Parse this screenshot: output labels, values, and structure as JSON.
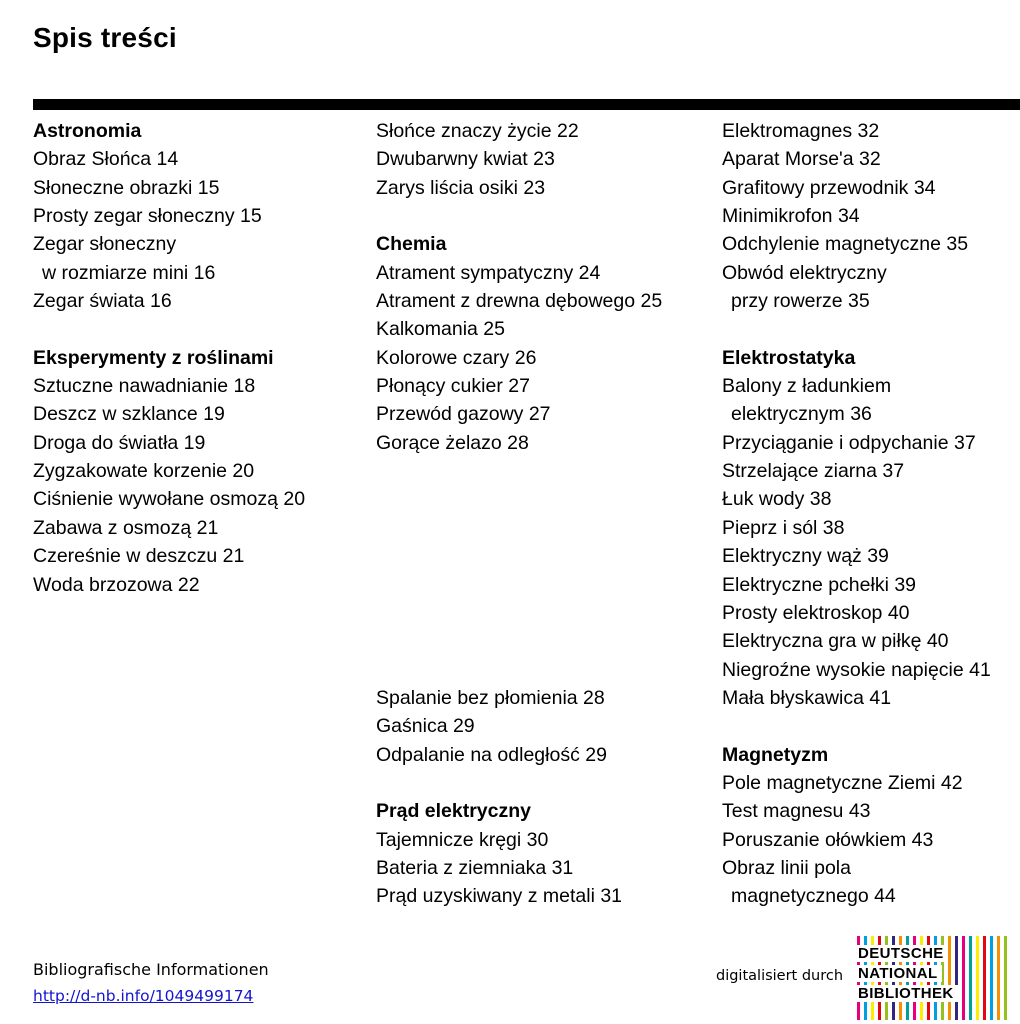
{
  "page": {
    "title": "Spis treści"
  },
  "toc": {
    "columns": [
      {
        "lines": [
          {
            "text": "Astronomia",
            "bold": true
          },
          {
            "text": "Obraz Słońca 14"
          },
          {
            "text": "Słoneczne obrazki 15"
          },
          {
            "text": "Prosty zegar słoneczny 15"
          },
          {
            "text": "Zegar słoneczny"
          },
          {
            "text": "w rozmiarze mini 16",
            "indent": true
          },
          {
            "text": "Zegar świata 16"
          },
          {
            "text": ""
          },
          {
            "text": "Eksperymenty z roślinami",
            "bold": true
          },
          {
            "text": "Sztuczne nawadnianie 18"
          },
          {
            "text": "Deszcz w szklance 19"
          },
          {
            "text": "Droga do światła 19"
          },
          {
            "text": "Zygzakowate korzenie 20"
          },
          {
            "text": "Ciśnienie wywołane osmozą 20"
          },
          {
            "text": "Zabawa z osmozą 21"
          },
          {
            "text": "Czereśnie w deszczu 21"
          },
          {
            "text": "Woda brzozowa 22"
          }
        ]
      },
      {
        "lines": [
          {
            "text": "Słońce znaczy życie 22"
          },
          {
            "text": "Dwubarwny kwiat 23"
          },
          {
            "text": "Zarys liścia osiki 23"
          },
          {
            "text": ""
          },
          {
            "text": "Chemia",
            "bold": true
          },
          {
            "text": "Atrament sympatyczny 24"
          },
          {
            "text": "Atrament z drewna dębowego 25"
          },
          {
            "text": "Kalkomania 25"
          },
          {
            "text": "Kolorowe czary 26"
          },
          {
            "text": "Płonący cukier 27"
          },
          {
            "text": "Przewód gazowy 27"
          },
          {
            "text": "Gorące żelazo 28"
          },
          {
            "text": ""
          },
          {
            "text": ""
          },
          {
            "text": ""
          },
          {
            "text": ""
          },
          {
            "text": ""
          },
          {
            "text": ""
          },
          {
            "text": ""
          },
          {
            "text": ""
          },
          {
            "text": "Spalanie bez płomienia 28"
          },
          {
            "text": "Gaśnica 29"
          },
          {
            "text": "Odpalanie na odległość 29"
          },
          {
            "text": ""
          },
          {
            "text": "Prąd elektryczny",
            "bold": true
          },
          {
            "text": "Tajemnicze kręgi 30"
          },
          {
            "text": "Bateria z ziemniaka 31"
          },
          {
            "text": "Prąd uzyskiwany z metali 31"
          }
        ]
      },
      {
        "lines": [
          {
            "text": "Elektromagnes 32"
          },
          {
            "text": "Aparat Morse'a 32"
          },
          {
            "text": "Grafitowy przewodnik 34"
          },
          {
            "text": "Minimikrofon 34"
          },
          {
            "text": "Odchylenie magnetyczne 35"
          },
          {
            "text": "Obwód elektryczny"
          },
          {
            "text": "przy rowerze 35",
            "indent": true
          },
          {
            "text": ""
          },
          {
            "text": "Elektrostatyka",
            "bold": true
          },
          {
            "text": "Balony z ładunkiem"
          },
          {
            "text": "elektrycznym 36",
            "indent": true
          },
          {
            "text": "Przyciąganie i odpychanie 37"
          },
          {
            "text": "Strzelające ziarna 37"
          },
          {
            "text": "Łuk wody 38"
          },
          {
            "text": "Pieprz i sól 38"
          },
          {
            "text": "Elektryczny wąż 39"
          },
          {
            "text": "Elektryczne pchełki 39"
          },
          {
            "text": "Prosty elektroskop 40"
          },
          {
            "text": "Elektryczna gra w piłkę 40"
          },
          {
            "text": "Niegroźne wysokie napięcie 41"
          },
          {
            "text": "Mała błyskawica 41"
          },
          {
            "text": ""
          },
          {
            "text": "Magnetyzm",
            "bold": true
          },
          {
            "text": "Pole magnetyczne Ziemi 42"
          },
          {
            "text": "Test magnesu 43"
          },
          {
            "text": "Poruszanie ołówkiem 43"
          },
          {
            "text": "Obraz linii pola"
          },
          {
            "text": "magnetycznego 44",
            "indent": true
          }
        ]
      }
    ]
  },
  "footer": {
    "biblio_label": "Bibliografische Informationen",
    "link": "http://d-nb.info/1049499174",
    "digitized_label": "digitalisiert durch",
    "logo_lines": [
      "DEUTSCHE",
      "NATIONAL",
      "BIBLIOTHEK"
    ],
    "logo_stripe_colors": [
      "#e6007e",
      "#009fe3",
      "#ffed00",
      "#e30613",
      "#95c11f",
      "#312783",
      "#f39200",
      "#00a19a",
      "#e6007e",
      "#ffed00",
      "#e30613",
      "#009fe3",
      "#95c11f",
      "#f39200",
      "#312783",
      "#e6007e",
      "#00a19a",
      "#ffed00",
      "#e30613",
      "#009fe3",
      "#f39200",
      "#95c11f"
    ]
  }
}
